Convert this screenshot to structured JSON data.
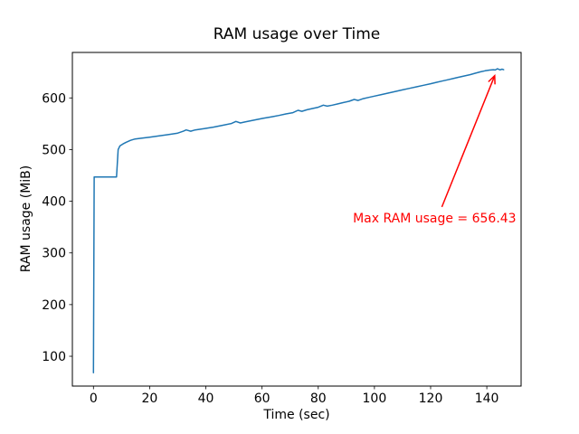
{
  "figure": {
    "background": "#ffffff",
    "text_color": "#000000"
  },
  "chart_data": {
    "type": "line",
    "title": "RAM usage over Time",
    "xlabel": "Time (sec)",
    "ylabel": "RAM usage (MiB)",
    "grid": false,
    "legend": "none",
    "xlim": [
      -7.5,
      152.2
    ],
    "ylim": [
      42.3,
      688
    ],
    "x_ticks": [
      0,
      20,
      40,
      60,
      80,
      100,
      120,
      140
    ],
    "y_ticks": [
      100,
      200,
      300,
      400,
      500,
      600
    ],
    "line_color": "#1f77b4",
    "max_value": 656.43,
    "series": [
      {
        "name": "RAM usage (MiB)",
        "x": [
          0,
          0.25,
          8.2,
          8.8,
          9.4,
          10.5,
          11.6,
          13.2,
          14.8,
          17,
          20,
          23.4,
          26.6,
          29.8,
          32,
          33,
          34.6,
          36.2,
          39.4,
          42.7,
          45.9,
          49.1,
          50.7,
          52.3,
          53.9,
          57.1,
          60.3,
          63.6,
          66,
          68.5,
          71,
          72.8,
          74.2,
          76,
          78,
          80,
          81.8,
          83.2,
          85,
          87,
          89,
          91,
          92.8,
          94.2,
          96,
          98,
          100,
          102.5,
          105,
          107.5,
          110,
          112.5,
          115,
          117.5,
          120,
          122,
          124,
          126,
          128,
          130,
          132,
          134,
          136,
          137.8,
          139.4,
          141,
          142.3,
          143,
          143.8,
          144.7,
          145.4,
          146
        ],
        "y": [
          68,
          447,
          447,
          500,
          507,
          511,
          514,
          518,
          520.5,
          522,
          524,
          526.5,
          529,
          531.5,
          535.5,
          538,
          535.5,
          538,
          540.5,
          543.5,
          547,
          550.5,
          554.5,
          551.5,
          553.5,
          557,
          560.5,
          563.5,
          566,
          569,
          571.5,
          576,
          574,
          577,
          579.5,
          582,
          586,
          584,
          586,
          588.5,
          591,
          593.5,
          597,
          595,
          598.5,
          601,
          603.5,
          606.5,
          609.5,
          612.5,
          615.5,
          618.5,
          621.5,
          624.5,
          627.5,
          630,
          632.5,
          635,
          637.5,
          640,
          642.5,
          645,
          648,
          650.5,
          652.5,
          653.8,
          654.6,
          654.0,
          656.43,
          654.2,
          655.7,
          654.6
        ]
      }
    ],
    "annotation": {
      "text": "Max RAM usage = 656.43",
      "color": "#ff0000",
      "text_xy": [
        121.4,
        366
      ],
      "arrow_start_xy": [
        124,
        389
      ],
      "arrow_end_xy": [
        142.8,
        643
      ]
    }
  }
}
